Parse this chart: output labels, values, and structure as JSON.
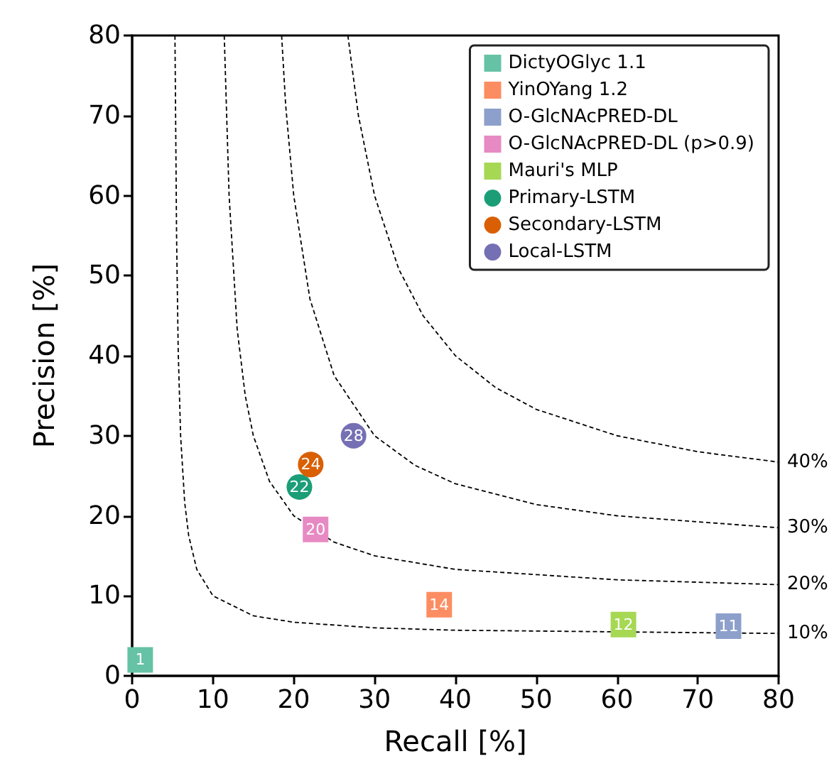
{
  "chart_data": {
    "type": "scatter",
    "xlabel": "Recall [%]",
    "ylabel": "Precision [%]",
    "xlim": [
      0,
      80
    ],
    "ylim": [
      0,
      80
    ],
    "xticks": [
      0,
      10,
      20,
      30,
      40,
      50,
      60,
      70,
      80
    ],
    "yticks": [
      0,
      10,
      20,
      30,
      40,
      50,
      60,
      70,
      80
    ],
    "grid": false,
    "legend": "top right",
    "annotations": [
      {
        "text": "1",
        "x": 1.0,
        "y": 2.0
      },
      {
        "text": "14",
        "x": 38.0,
        "y": 8.9
      },
      {
        "text": "11",
        "x": 73.8,
        "y": 6.2
      },
      {
        "text": "20",
        "x": 22.7,
        "y": 18.3
      },
      {
        "text": "12",
        "x": 60.8,
        "y": 6.4
      },
      {
        "text": "22",
        "x": 20.7,
        "y": 23.6
      },
      {
        "text": "24",
        "x": 22.1,
        "y": 26.4
      },
      {
        "text": "28",
        "x": 27.4,
        "y": 30.0
      }
    ],
    "series": [
      {
        "name": "DictyOGlyc 1.1",
        "color": "#66c2a5",
        "marker": "square",
        "x": [
          1.0
        ],
        "values": [
          2.0
        ]
      },
      {
        "name": "YinOYang 1.2",
        "color": "#fc8d62",
        "marker": "square",
        "x": [
          38.0
        ],
        "values": [
          8.9
        ]
      },
      {
        "name": "O-GlcNAcPRED-DL",
        "color": "#8da0cb",
        "marker": "square",
        "x": [
          73.8
        ],
        "values": [
          6.2
        ]
      },
      {
        "name": "O-GlcNAcPRED-DL (p>0.9)",
        "color": "#e78ac3",
        "marker": "square",
        "x": [
          22.7
        ],
        "values": [
          18.3
        ]
      },
      {
        "name": "Mauri's MLP",
        "color": "#a6d854",
        "marker": "square",
        "x": [
          60.8
        ],
        "values": [
          6.4
        ]
      },
      {
        "name": "Primary-LSTM",
        "color": "#1b9e77",
        "marker": "circle",
        "x": [
          20.7
        ],
        "values": [
          23.6
        ]
      },
      {
        "name": "Secondary-LSTM",
        "color": "#d95f02",
        "marker": "circle",
        "x": [
          22.1
        ],
        "values": [
          26.4
        ]
      },
      {
        "name": "Local-LSTM",
        "color": "#7570b3",
        "marker": "circle",
        "x": [
          27.4
        ],
        "values": [
          30.0
        ]
      },
      {
        "name": "10%",
        "type": "line",
        "color": "#000000",
        "marker": "none",
        "line_style": "dashed",
        "x": [
          5.3,
          5.5,
          5.7,
          6,
          6.5,
          7,
          8,
          10,
          15,
          20,
          30,
          40,
          50,
          80
        ],
        "values": [
          80,
          55,
          40.7,
          30,
          21.7,
          17.5,
          13.3,
          10,
          7.5,
          6.7,
          6,
          5.7,
          5.6,
          5.3
        ]
      },
      {
        "name": "20%",
        "type": "line",
        "color": "#000000",
        "marker": "none",
        "line_style": "dashed",
        "x": [
          11.4,
          12,
          13,
          14,
          15,
          17,
          20,
          25,
          30,
          40,
          60,
          80
        ],
        "values": [
          80,
          60,
          43.3,
          35,
          30,
          24.3,
          20,
          16.7,
          15,
          13.3,
          12,
          11.4
        ]
      },
      {
        "name": "30%",
        "type": "line",
        "color": "#000000",
        "marker": "none",
        "line_style": "dashed",
        "x": [
          18.5,
          19,
          20,
          22,
          25,
          30,
          35,
          40,
          50,
          60,
          80
        ],
        "values": [
          80,
          71.3,
          60,
          47.1,
          37.5,
          30,
          26.3,
          24,
          21.4,
          20,
          18.5
        ]
      },
      {
        "name": "40%",
        "type": "line",
        "color": "#000000",
        "marker": "none",
        "line_style": "dashed",
        "x": [
          26.7,
          28,
          30,
          33,
          36,
          40,
          45,
          50,
          60,
          70,
          80
        ],
        "values": [
          80,
          70,
          60,
          50.8,
          45,
          40,
          36,
          33.3,
          30,
          28,
          26.7
        ]
      }
    ]
  }
}
